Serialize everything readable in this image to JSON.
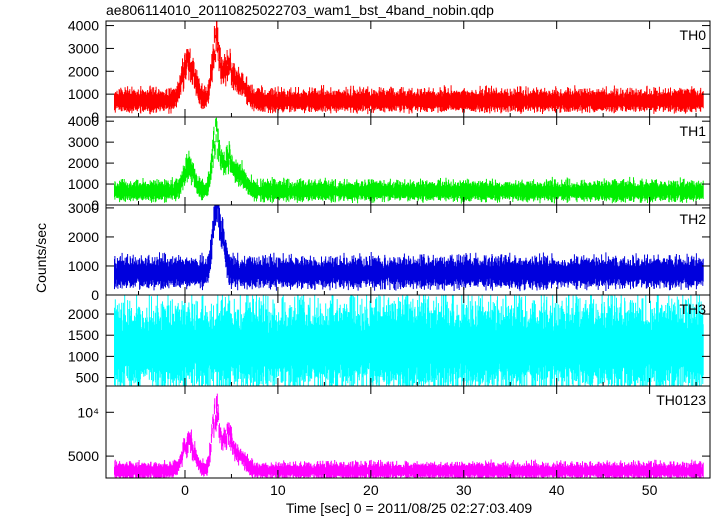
{
  "chart_data": {
    "type": "line",
    "title": "ae806114010_20110825022703_wam1_bst_4band_nobin.qdp",
    "xlabel": "Time [sec] 0 = 2011/08/25 02:27:03.409",
    "ylabel": "Counts/sec",
    "xlim": [
      -8.5,
      56.5
    ],
    "x_ticks": [
      0,
      10,
      20,
      30,
      40,
      50
    ],
    "grid": false,
    "series": [
      {
        "name": "TH0",
        "color": "#ff0000",
        "ylim": [
          0,
          4200
        ],
        "y_ticks": [
          0,
          1000,
          2000,
          3000,
          4000
        ],
        "y_tick_labels": [
          "0",
          "1000",
          "2000",
          "3000",
          "4000"
        ],
        "baseline": 700,
        "noise_amplitude": 420,
        "burst_peaks": [
          {
            "t": 0.4,
            "peak": 2900,
            "width": 0.9
          },
          {
            "t": 3.3,
            "peak": 4000,
            "width": 0.55
          },
          {
            "t": 4.6,
            "peak": 2500,
            "width": 0.8
          },
          {
            "t": 6.0,
            "peak": 1600,
            "width": 0.9
          }
        ]
      },
      {
        "name": "TH1",
        "color": "#00ee00",
        "ylim": [
          0,
          4200
        ],
        "y_ticks": [
          0,
          1000,
          2000,
          3000,
          4000
        ],
        "y_tick_labels": [
          "0",
          "1000",
          "2000",
          "3000",
          "4000"
        ],
        "baseline": 650,
        "noise_amplitude": 420,
        "burst_peaks": [
          {
            "t": 0.4,
            "peak": 2100,
            "width": 0.8
          },
          {
            "t": 3.3,
            "peak": 3900,
            "width": 0.55
          },
          {
            "t": 4.6,
            "peak": 2600,
            "width": 0.8
          },
          {
            "t": 6.0,
            "peak": 1500,
            "width": 0.9
          }
        ]
      },
      {
        "name": "TH2",
        "color": "#0000dd",
        "ylim": [
          0,
          3100
        ],
        "y_ticks": [
          0,
          1000,
          2000,
          3000
        ],
        "y_tick_labels": [
          "0",
          "1000",
          "2000",
          "3000"
        ],
        "baseline": 750,
        "noise_amplitude": 450,
        "burst_peaks": [
          {
            "t": 3.3,
            "peak": 3000,
            "width": 0.5
          },
          {
            "t": 3.9,
            "peak": 2300,
            "width": 0.6
          }
        ]
      },
      {
        "name": "TH3",
        "color": "#00ffff",
        "ylim": [
          300,
          2450
        ],
        "y_ticks": [
          500,
          1000,
          1500,
          2000
        ],
        "y_tick_labels": [
          "500",
          "1000",
          "1500",
          "2000"
        ],
        "baseline": 1200,
        "noise_amplitude": 900,
        "burst_peaks": []
      },
      {
        "name": "TH0123",
        "color": "#ff00ff",
        "ylim": [
          2500,
          13000
        ],
        "y_ticks": [
          5000,
          10000
        ],
        "y_tick_labels": [
          "5000",
          "10⁴"
        ],
        "baseline": 3300,
        "noise_amplitude": 800,
        "burst_peaks": [
          {
            "t": 0.4,
            "peak": 7500,
            "width": 0.9
          },
          {
            "t": 3.3,
            "peak": 12300,
            "width": 0.55
          },
          {
            "t": 4.6,
            "peak": 8500,
            "width": 0.8
          },
          {
            "t": 6.0,
            "peak": 5000,
            "width": 0.9
          }
        ]
      }
    ]
  }
}
